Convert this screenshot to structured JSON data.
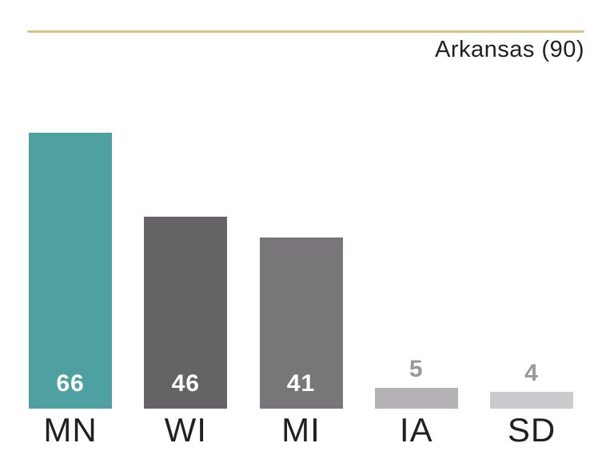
{
  "page": {
    "background": "#ffffff"
  },
  "reference": {
    "label": "Arkansas (90)",
    "value": 90,
    "line_color": "#DEBF86",
    "label_color": "#231F20"
  },
  "chart_data": {
    "type": "bar",
    "categories": [
      "MN",
      "WI",
      "MI",
      "IA",
      "SD"
    ],
    "values": [
      66,
      46,
      41,
      5,
      4
    ],
    "bar_colors": [
      "#4EA0A1",
      "#656366",
      "#787678",
      "#B4B2B4",
      "#CBCACC"
    ],
    "title": "",
    "xlabel": "",
    "ylabel": "",
    "ylim": [
      0,
      90
    ],
    "grid": false,
    "legend": false,
    "annotations": [
      {
        "text": "Arkansas (90)",
        "value": 90,
        "style": "reference-line",
        "color": "#DEBF86"
      }
    ],
    "value_labels": {
      "inside_color": "#FFFFFF",
      "outside_color": "#9A989B"
    },
    "category_label_color": "#231F20"
  }
}
